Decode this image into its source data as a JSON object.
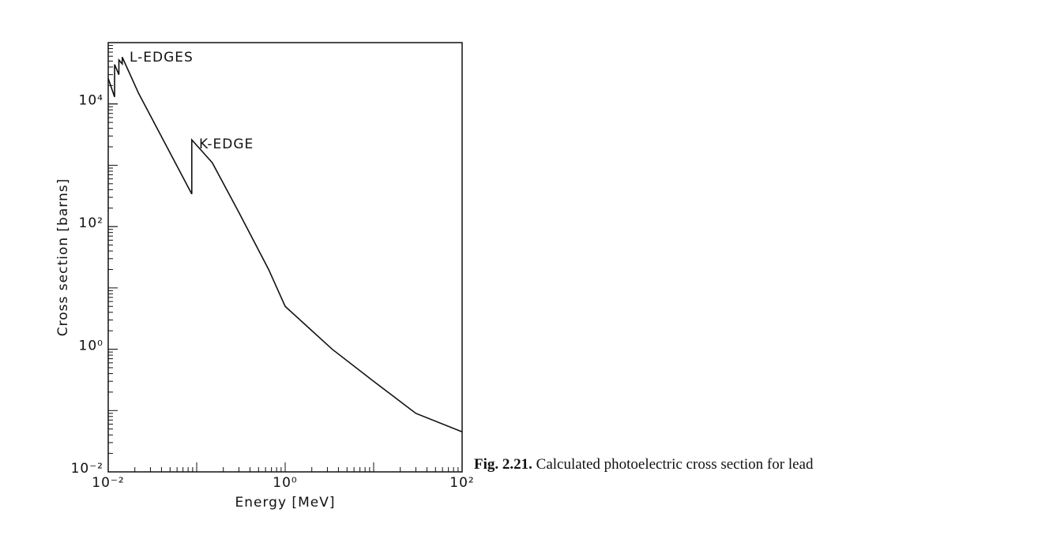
{
  "chart_data": {
    "type": "line",
    "x_label": "Energy [MeV]",
    "y_label": "Cross section [barns]",
    "x": [
      0.01,
      0.0118,
      0.0118,
      0.0132,
      0.0132,
      0.0144,
      0.0144,
      0.022,
      0.088,
      0.088,
      0.15,
      0.3,
      0.65,
      1,
      3.4,
      10,
      30,
      100
    ],
    "series": [
      {
        "color": "#111111",
        "values": [
          26000,
          13000,
          44000,
          30000,
          52000,
          45000,
          58000,
          15000,
          340,
          2600,
          1100,
          170,
          20,
          5,
          1,
          0.3,
          0.09,
          0.045
        ]
      }
    ],
    "xlog": true,
    "ylog": true,
    "xlim": [
      0.01,
      100
    ],
    "ylim": [
      0.01,
      100000
    ],
    "xticks": [
      {
        "value": 0.01,
        "label": "10⁻²"
      },
      {
        "value": 1,
        "label": "10⁰"
      },
      {
        "value": 100,
        "label": "10²"
      }
    ],
    "yticks": [
      {
        "value": 0.01,
        "label": "10⁻²"
      },
      {
        "value": 1,
        "label": "10⁰"
      },
      {
        "value": 100,
        "label": "10²"
      },
      {
        "value": 10000,
        "label": "10⁴"
      }
    ],
    "annotations": [
      "L-EDGES",
      "K-EDGE"
    ],
    "caption_label": "Fig. 2.21.",
    "caption_text": "Calculated photoelectric cross section for lead"
  }
}
